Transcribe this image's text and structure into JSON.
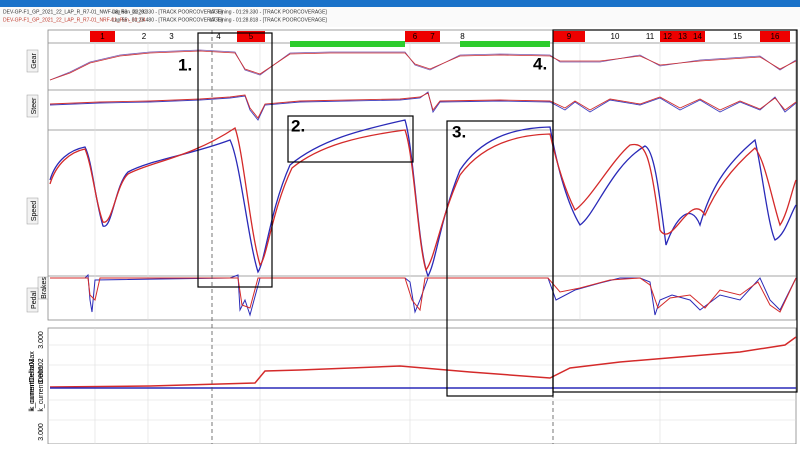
{
  "header": {
    "laps": [
      {
        "file": "DEV-GP-F1_GP_2021_22_LAP_R_R7-01_NWF-08_Run_33_02",
        "info": "Lap 58 - 01:29.330 - [TRACK POORCOVERAGE]",
        "compare": "LT Timing - 01:29.330 - [TRACK POORCOVERAGE]"
      },
      {
        "file": "DEV-GP-F1_GP_2021_22_LAP_R_R7-01_NRF-01_Run_33_04",
        "info": "Lap 55 - 01:28.480 - [TRACK POORCOVERAGE]",
        "compare": "LT Timing - 01:28.818 - [TRACK POORCOVERAGE]"
      }
    ]
  },
  "sectors": [
    {
      "label": "1",
      "highlight": "red"
    },
    {
      "label": "2",
      "highlight": null
    },
    {
      "label": "3",
      "highlight": null
    },
    {
      "label": "4",
      "highlight": null
    },
    {
      "label": "5",
      "highlight": "red"
    },
    {
      "label": "6",
      "highlight": "red"
    },
    {
      "label": "7",
      "highlight": "red"
    },
    {
      "label": "8",
      "highlight": null
    },
    {
      "label": "9",
      "highlight": "red"
    },
    {
      "label": "10",
      "highlight": null
    },
    {
      "label": "11",
      "highlight": null
    },
    {
      "label": "12",
      "highlight": "red"
    },
    {
      "label": "13",
      "highlight": "red"
    },
    {
      "label": "14",
      "highlight": "red"
    },
    {
      "label": "15",
      "highlight": null
    },
    {
      "label": "16",
      "highlight": "red"
    }
  ],
  "annotations": [
    "1.",
    "2.",
    "3.",
    "4."
  ],
  "channels": [
    "Gear",
    "Steer",
    "Speed",
    "Brakes",
    "Pedal"
  ],
  "delta_panel": {
    "scale_labels": [
      "3.000",
      "3.000",
      "3.000"
    ],
    "channels": [
      "k_currentDelta01",
      "k_currentDelta02",
      "k_currentDeltaMax"
    ]
  }
}
